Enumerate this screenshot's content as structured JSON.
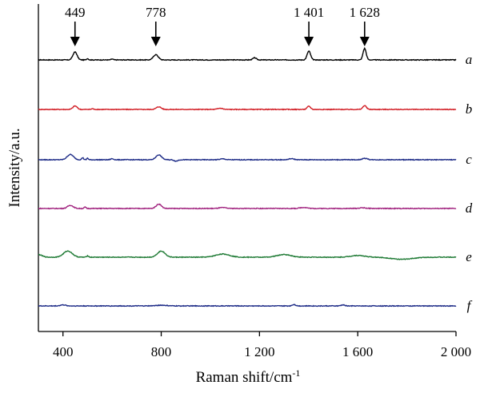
{
  "chart_data": {
    "type": "line",
    "xlabel": "Raman shift/cm",
    "xlabel_sup": "-1",
    "ylabel": "Intensity/a.u.",
    "xlim": [
      300,
      2000
    ],
    "xticks": [
      400,
      800,
      1200,
      1600,
      2000
    ],
    "xtick_labels": [
      "400",
      "800",
      "1 200",
      "1 600",
      "2 000"
    ],
    "grid": false,
    "legend": "none",
    "annotations": [
      {
        "x": 449,
        "label": "449"
      },
      {
        "x": 778,
        "label": "778"
      },
      {
        "x": 1401,
        "label": "1 401"
      },
      {
        "x": 1628,
        "label": "1 628"
      }
    ],
    "series": [
      {
        "name": "a",
        "color": "#000000",
        "offset": 5,
        "peaks": [
          [
            449,
            0.45,
            12
          ],
          [
            500,
            0.08,
            5
          ],
          [
            600,
            0.05,
            6
          ],
          [
            778,
            0.3,
            14
          ],
          [
            1180,
            0.12,
            10
          ],
          [
            1401,
            0.5,
            10
          ],
          [
            1628,
            0.65,
            9
          ]
        ]
      },
      {
        "name": "b",
        "color": "#d21f26",
        "offset": 4,
        "peaks": [
          [
            449,
            0.2,
            12
          ],
          [
            520,
            0.05,
            5
          ],
          [
            790,
            0.15,
            14
          ],
          [
            1040,
            0.07,
            14
          ],
          [
            1401,
            0.18,
            10
          ],
          [
            1628,
            0.22,
            10
          ]
        ]
      },
      {
        "name": "c",
        "color": "#1d2b87",
        "offset": 3,
        "peaks": [
          [
            430,
            0.3,
            18
          ],
          [
            480,
            0.12,
            5
          ],
          [
            500,
            0.1,
            4
          ],
          [
            600,
            0.06,
            8
          ],
          [
            790,
            0.28,
            16
          ],
          [
            860,
            -0.08,
            10
          ],
          [
            1050,
            0.05,
            15
          ],
          [
            1330,
            0.06,
            15
          ],
          [
            1630,
            0.08,
            15
          ]
        ]
      },
      {
        "name": "d",
        "color": "#a1237f",
        "offset": 2,
        "peaks": [
          [
            430,
            0.18,
            16
          ],
          [
            490,
            0.08,
            5
          ],
          [
            790,
            0.25,
            15
          ],
          [
            1050,
            0.05,
            20
          ],
          [
            1380,
            0.06,
            20
          ],
          [
            1620,
            0.04,
            20
          ]
        ]
      },
      {
        "name": "e",
        "color": "#1e7a34",
        "offset": 1,
        "peaks": [
          [
            300,
            0.15,
            20
          ],
          [
            420,
            0.35,
            25
          ],
          [
            500,
            0.08,
            6
          ],
          [
            800,
            0.35,
            22
          ],
          [
            1050,
            0.18,
            40
          ],
          [
            1300,
            0.15,
            40
          ],
          [
            1600,
            0.1,
            40
          ],
          [
            1780,
            -0.12,
            60
          ]
        ]
      },
      {
        "name": "f",
        "color": "#1d2b87",
        "offset": 0,
        "peaks": [
          [
            400,
            0.06,
            15
          ],
          [
            800,
            0.04,
            30
          ],
          [
            1340,
            0.08,
            10
          ],
          [
            1540,
            0.06,
            10
          ]
        ]
      }
    ]
  }
}
